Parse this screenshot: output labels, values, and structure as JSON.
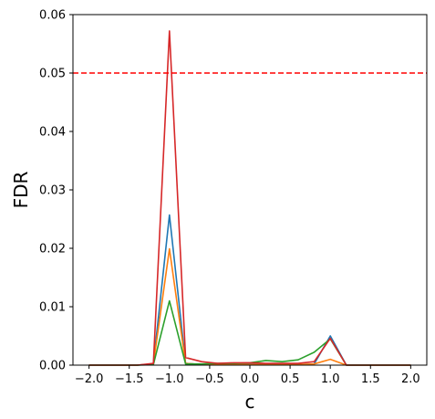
{
  "chart_data": {
    "type": "line",
    "xlabel": "c",
    "ylabel": "FDR",
    "xlim": [
      -2.2,
      2.2
    ],
    "ylim": [
      0.0,
      0.06
    ],
    "xticks": [
      -2.0,
      -1.5,
      -1.0,
      -0.5,
      0.0,
      0.5,
      1.0,
      1.5,
      2.0
    ],
    "xtick_labels": [
      "−2.0",
      "−1.5",
      "−1.0",
      "−0.5",
      "0.0",
      "0.5",
      "1.0",
      "1.5",
      "2.0"
    ],
    "yticks": [
      0.0,
      0.01,
      0.02,
      0.03,
      0.04,
      0.05,
      0.06
    ],
    "ytick_labels": [
      "0.00",
      "0.01",
      "0.02",
      "0.03",
      "0.04",
      "0.05",
      "0.06"
    ],
    "grid": false,
    "x": [
      -2.0,
      -1.8,
      -1.6,
      -1.4,
      -1.2,
      -1.0,
      -0.8,
      -0.6,
      -0.4,
      -0.2,
      0.0,
      0.2,
      0.4,
      0.6,
      0.8,
      1.0,
      1.2,
      1.4,
      1.6,
      1.8,
      2.0
    ],
    "series": [
      {
        "color": "#1f77b4",
        "values": [
          0,
          0,
          0,
          0,
          0.0002,
          0.0257,
          0.0003,
          0.0001,
          0.0001,
          0.0002,
          0.0002,
          0.0002,
          0.0001,
          0.0001,
          0.0002,
          0.005,
          0,
          0,
          0,
          0,
          0
        ]
      },
      {
        "color": "#ff7f0e",
        "values": [
          0,
          0,
          0,
          0,
          0.0002,
          0.0199,
          0.0003,
          0.0001,
          0.0001,
          0.0001,
          0.0001,
          0.0001,
          0.0001,
          0.0001,
          0.0002,
          0.001,
          0,
          0,
          0,
          0,
          0
        ]
      },
      {
        "color": "#2ca02c",
        "values": [
          0,
          0,
          0,
          0,
          0.0001,
          0.011,
          0.0002,
          0.0002,
          0.0003,
          0.0003,
          0.0004,
          0.0008,
          0.0006,
          0.0009,
          0.0022,
          0.0045,
          0,
          0,
          0,
          0,
          0
        ]
      },
      {
        "color": "#d62728",
        "values": [
          0,
          0,
          0,
          0,
          0.0003,
          0.0572,
          0.0013,
          0.0006,
          0.0003,
          0.0004,
          0.0004,
          0.0003,
          0.0003,
          0.0003,
          0.0006,
          0.0046,
          0,
          0,
          0,
          0,
          0
        ]
      }
    ],
    "hlines": [
      {
        "y": 0.05,
        "color": "#ff0000",
        "style": "dashed"
      }
    ]
  }
}
